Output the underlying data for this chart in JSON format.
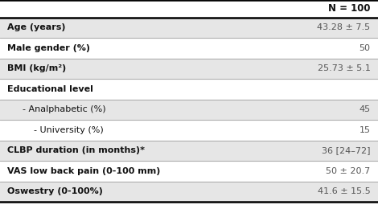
{
  "rows": [
    {
      "label": "Age (years)",
      "value": "43.28 ± 7.5",
      "bold_label": true,
      "indent": 0,
      "shade": true
    },
    {
      "label": "Male gender (%)",
      "value": "50",
      "bold_label": true,
      "indent": 0,
      "shade": false
    },
    {
      "label": "BMI (kg/m²)",
      "value": "25.73 ± 5.1",
      "bold_label": true,
      "indent": 0,
      "shade": true
    },
    {
      "label": "Educational level",
      "value": "",
      "bold_label": true,
      "indent": 0,
      "shade": false
    },
    {
      "label": "- Analphabetic (%)",
      "value": "45",
      "bold_label": false,
      "indent": 1,
      "shade": true
    },
    {
      "label": "- University (%)",
      "value": "15",
      "bold_label": false,
      "indent": 2,
      "shade": false
    },
    {
      "label": "CLBP duration (in months)*",
      "value": "36 [24–72]",
      "bold_label": true,
      "indent": 0,
      "shade": true
    },
    {
      "label": "VAS low back pain (0-100 mm)",
      "value": "50 ± 20.7",
      "bold_label": true,
      "indent": 0,
      "shade": false
    },
    {
      "label": "Oswestry (0-100%)",
      "value": "41.6 ± 15.5",
      "bold_label": true,
      "indent": 0,
      "shade": true
    }
  ],
  "header_value": "N = 100",
  "bg_color": "#ffffff",
  "shade_color": "#e6e6e6",
  "line_color": "#aaaaaa",
  "text_color": "#111111",
  "value_color": "#555555",
  "header_line_color": "#000000",
  "fig_width": 4.7,
  "fig_height": 2.6,
  "dpi": 100
}
